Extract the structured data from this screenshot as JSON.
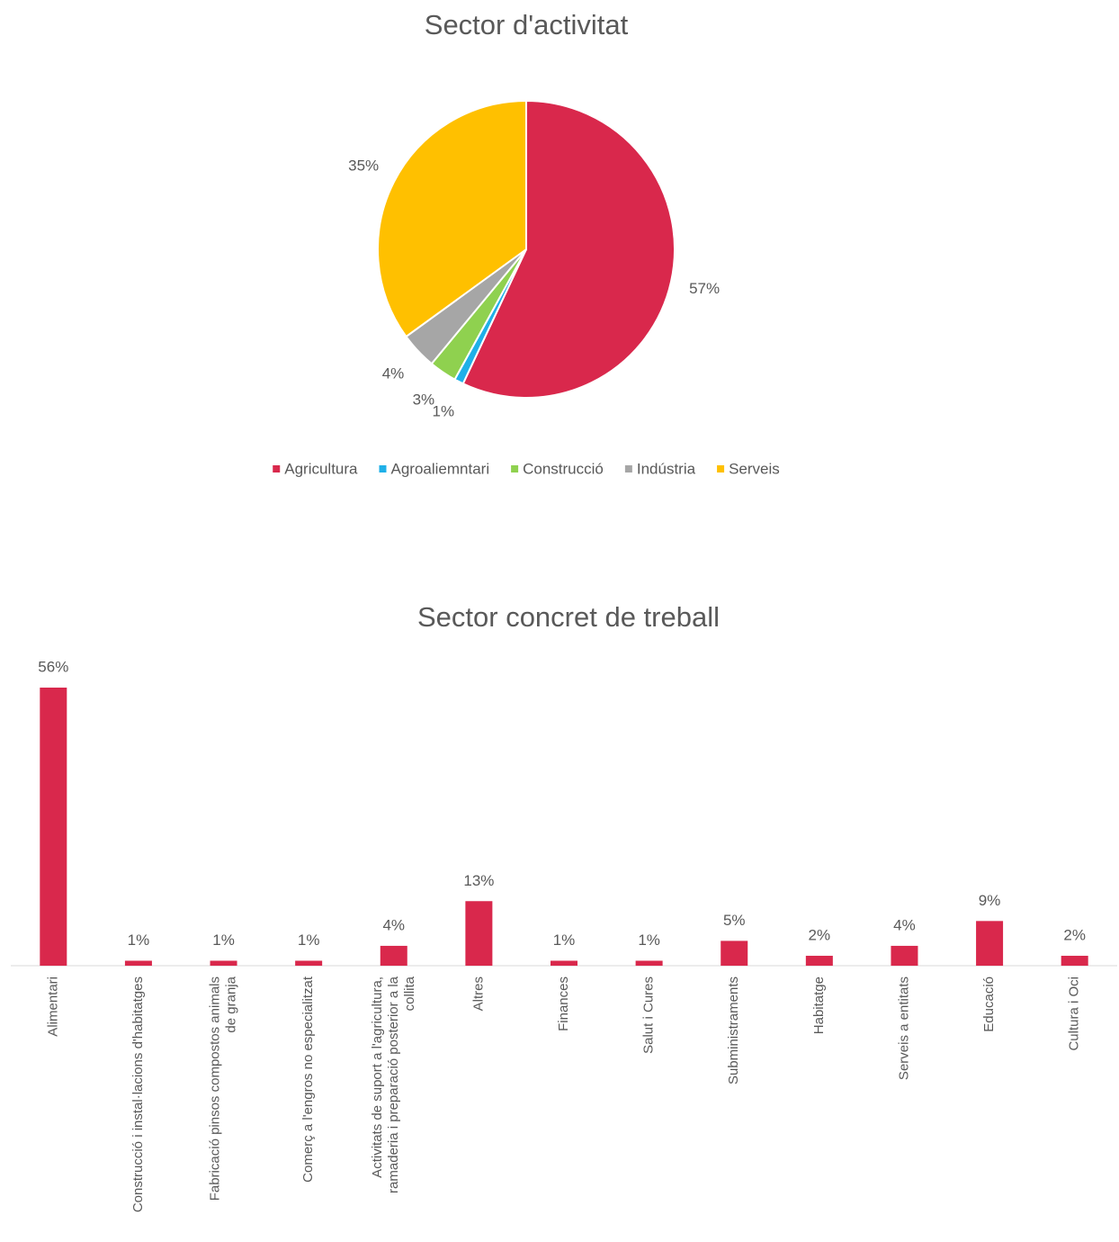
{
  "chart_data": [
    {
      "type": "pie",
      "title": "Sector d'activitat",
      "categories": [
        "Agricultura",
        "Agroaliemntari",
        "Construcció",
        "Indústria",
        "Serveis"
      ],
      "values": [
        57,
        1,
        3,
        4,
        35
      ],
      "value_labels": [
        "57%",
        "1%",
        "3%",
        "4%",
        "35%"
      ],
      "colors": [
        "#d9284c",
        "#1fb0e8",
        "#8fd14f",
        "#a6a6a6",
        "#ffc000"
      ],
      "legend": "bottom"
    },
    {
      "type": "bar",
      "title": "Sector concret de treball",
      "categories": [
        "Alimentari",
        "Construcció i instal·lacions d'habitatges",
        "Fabricació pinsos compostos animals de granja",
        "Comerç a l'engros no especialitzat",
        "Activitats de suport a l'agricultura, ramaderia i preparació posterior a la collita",
        "Altres",
        "Finances",
        "Salut i Cures",
        "Subministraments",
        "Habitatge",
        "Serveis a entitats",
        "Educació",
        "Cultura i Oci"
      ],
      "values": [
        56,
        1,
        1,
        1,
        4,
        13,
        1,
        1,
        5,
        2,
        4,
        9,
        2
      ],
      "value_labels": [
        "56%",
        "1%",
        "1%",
        "1%",
        "4%",
        "13%",
        "1%",
        "1%",
        "5%",
        "2%",
        "4%",
        "9%",
        "2%"
      ],
      "color": "#d9284c"
    }
  ]
}
